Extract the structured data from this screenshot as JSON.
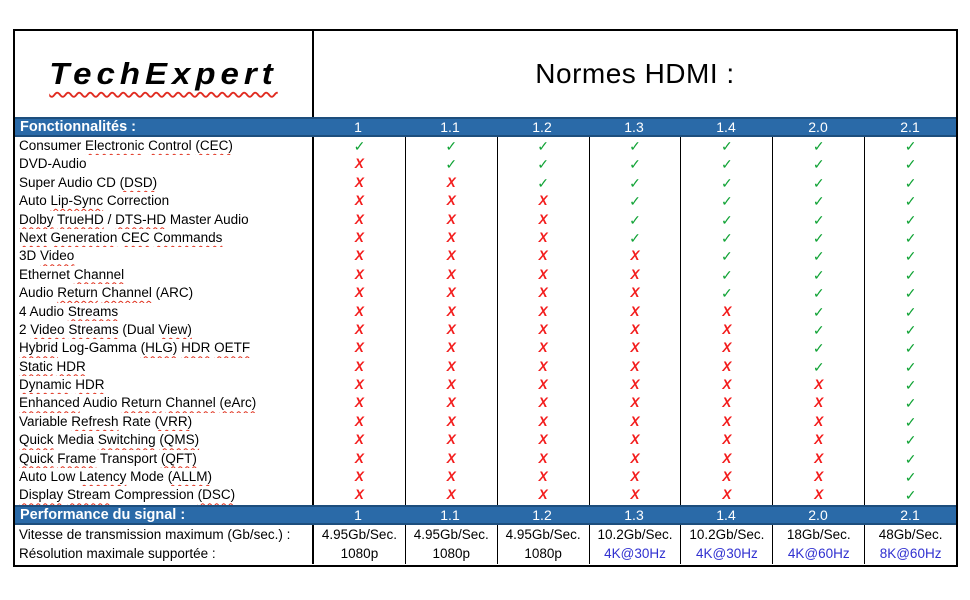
{
  "brand": {
    "logo_text": "TechExpert"
  },
  "title": "Normes HDMI :",
  "columns": [
    "1",
    "1.1",
    "1.2",
    "1.3",
    "1.4",
    "2.0",
    "2.1"
  ],
  "sections": {
    "features_header": "Fonctionnalités :",
    "performance_header": "Performance du signal :"
  },
  "marks": {
    "check_glyph": "✓",
    "cross_glyph": "X",
    "check_color": "#10a335",
    "cross_color": "#f31c1c"
  },
  "colors": {
    "header_bg": "#2a6aa8",
    "header_border": "#1d4e7d",
    "highlight_value": "#3030d0",
    "spellcheck_wavy": "#e0321e"
  },
  "features": [
    {
      "label": "Consumer Electronic Control (CEC)",
      "underline": [
        "Electronic",
        "Control",
        "(CEC)"
      ],
      "supported": [
        true,
        true,
        true,
        true,
        true,
        true,
        true
      ]
    },
    {
      "label": "DVD-Audio",
      "underline": [],
      "supported": [
        false,
        true,
        true,
        true,
        true,
        true,
        true
      ]
    },
    {
      "label": "Super Audio CD (DSD)",
      "underline": [
        "(DSD)"
      ],
      "supported": [
        false,
        false,
        true,
        true,
        true,
        true,
        true
      ]
    },
    {
      "label": "Auto Lip-Sync Correction",
      "underline": [
        "Lip-Sync"
      ],
      "supported": [
        false,
        false,
        false,
        true,
        true,
        true,
        true
      ]
    },
    {
      "label": "Dolby TrueHD / DTS-HD Master Audio",
      "underline": [
        "Dolby",
        "TrueHD",
        "DTS-HD"
      ],
      "supported": [
        false,
        false,
        false,
        true,
        true,
        true,
        true
      ]
    },
    {
      "label": "Next Generation CEC Commands",
      "underline": [
        "Next",
        "Generation",
        "CEC",
        "Commands"
      ],
      "supported": [
        false,
        false,
        false,
        true,
        true,
        true,
        true
      ]
    },
    {
      "label": "3D Video",
      "underline": [
        "Video"
      ],
      "supported": [
        false,
        false,
        false,
        false,
        true,
        true,
        true
      ]
    },
    {
      "label": "Ethernet Channel",
      "underline": [
        "Channel"
      ],
      "supported": [
        false,
        false,
        false,
        false,
        true,
        true,
        true
      ]
    },
    {
      "label": "Audio Return Channel (ARC)",
      "underline": [
        "Return",
        "Channel"
      ],
      "supported": [
        false,
        false,
        false,
        false,
        true,
        true,
        true
      ]
    },
    {
      "label": "4 Audio Streams",
      "underline": [
        "Streams"
      ],
      "supported": [
        false,
        false,
        false,
        false,
        false,
        true,
        true
      ]
    },
    {
      "label": "2 Video Streams (Dual View)",
      "underline": [
        "Video",
        "Streams",
        "View)"
      ],
      "supported": [
        false,
        false,
        false,
        false,
        false,
        true,
        true
      ]
    },
    {
      "label": "Hybrid Log-Gamma (HLG) HDR OETF",
      "underline": [
        "Hybrid",
        "(HLG)",
        "HDR",
        "OETF"
      ],
      "supported": [
        false,
        false,
        false,
        false,
        false,
        true,
        true
      ]
    },
    {
      "label": "Static HDR",
      "underline": [
        "Static",
        "HDR"
      ],
      "supported": [
        false,
        false,
        false,
        false,
        false,
        true,
        true
      ]
    },
    {
      "label": "Dynamic HDR",
      "underline": [
        "Dynamic",
        "HDR"
      ],
      "supported": [
        false,
        false,
        false,
        false,
        false,
        false,
        true
      ]
    },
    {
      "label": "Enhanced Audio Return Channel (eArc)",
      "underline": [
        "Enhanced",
        "Return",
        "Channel",
        "(eArc)"
      ],
      "supported": [
        false,
        false,
        false,
        false,
        false,
        false,
        true
      ]
    },
    {
      "label": "Variable Refresh Rate (VRR)",
      "underline": [
        "Refresh",
        "(VRR)"
      ],
      "supported": [
        false,
        false,
        false,
        false,
        false,
        false,
        true
      ]
    },
    {
      "label": "Quick Media Switching (QMS)",
      "underline": [
        "Quick",
        "Switching",
        "(QMS)"
      ],
      "supported": [
        false,
        false,
        false,
        false,
        false,
        false,
        true
      ]
    },
    {
      "label": "Quick Frame Transport (QFT)",
      "underline": [
        "Quick",
        "Frame",
        "(QFT)"
      ],
      "supported": [
        false,
        false,
        false,
        false,
        false,
        false,
        true
      ]
    },
    {
      "label": "Auto Low Latency Mode (ALLM)",
      "underline": [
        "Latency",
        "(ALLM)"
      ],
      "supported": [
        false,
        false,
        false,
        false,
        false,
        false,
        true
      ]
    },
    {
      "label": "Display Stream Compression (DSC)",
      "underline": [
        "Display",
        "Stream",
        "(DSC)"
      ],
      "supported": [
        false,
        false,
        false,
        false,
        false,
        false,
        true
      ]
    }
  ],
  "performance_rows": [
    {
      "label": "Vitesse de transmission maximum (Gb/sec.) :",
      "values": [
        "4.95Gb/Sec.",
        "4.95Gb/Sec.",
        "4.95Gb/Sec.",
        "10.2Gb/Sec.",
        "10.2Gb/Sec.",
        "18Gb/Sec.",
        "48Gb/Sec."
      ],
      "highlight": [
        false,
        false,
        false,
        false,
        false,
        false,
        false
      ]
    },
    {
      "label": "Résolution maximale supportée :",
      "values": [
        "1080p",
        "1080p",
        "1080p",
        "4K@30Hz",
        "4K@30Hz",
        "4K@60Hz",
        "8K@60Hz"
      ],
      "highlight": [
        false,
        false,
        false,
        true,
        true,
        true,
        true
      ]
    }
  ]
}
